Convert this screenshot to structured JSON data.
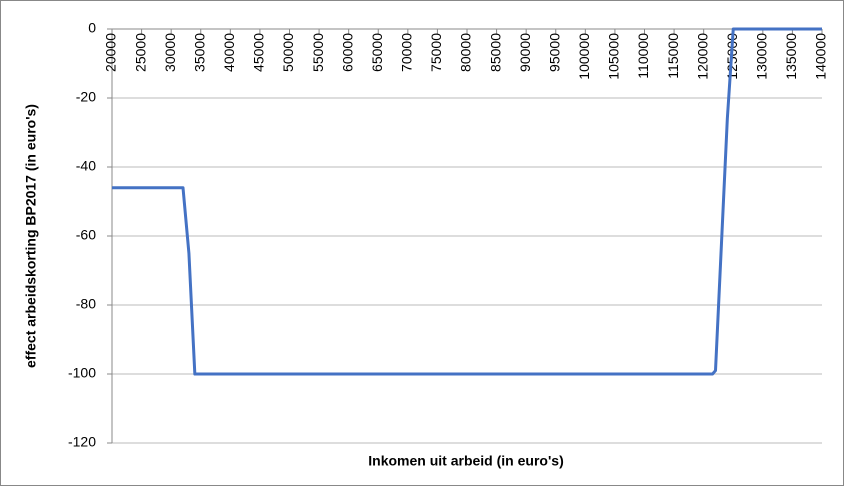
{
  "chart_data": {
    "type": "line",
    "x_label": "Inkomen uit arbeid (in euro's)",
    "y_label": "effect arbeidskorting BP2017 (in euro's)",
    "x": [
      20000,
      32000,
      33000,
      34000,
      121500,
      122000,
      124000,
      125000,
      140000
    ],
    "values": [
      -46,
      -46,
      -65,
      -100,
      -100,
      -99,
      -26,
      0,
      0
    ],
    "color": "#4472c4",
    "xlim": [
      20000,
      140000
    ],
    "xticks": [
      20000,
      25000,
      30000,
      35000,
      40000,
      45000,
      50000,
      55000,
      60000,
      65000,
      70000,
      75000,
      80000,
      85000,
      90000,
      95000,
      100000,
      105000,
      110000,
      115000,
      120000,
      125000,
      130000,
      135000,
      140000
    ],
    "ylim": [
      -120,
      0
    ],
    "yticks": [
      0,
      -20,
      -40,
      -60,
      -80,
      -100,
      -120
    ],
    "grid": true
  }
}
